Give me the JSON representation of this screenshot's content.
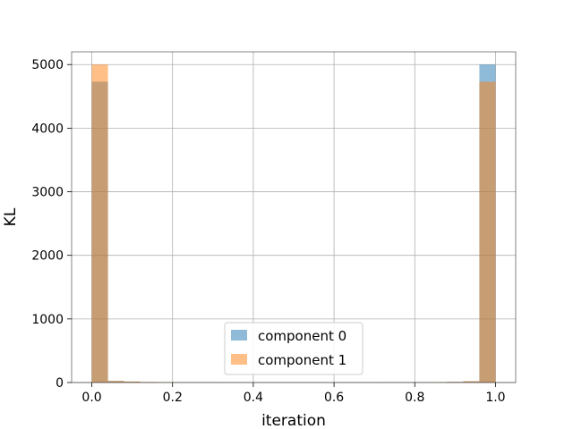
{
  "chart_data": {
    "type": "bar",
    "title": "",
    "xlabel": "iteration",
    "ylabel": "KL",
    "xlim": [
      -0.05,
      1.05
    ],
    "ylim": [
      0,
      5200
    ],
    "xticks": [
      0.0,
      0.2,
      0.4,
      0.6,
      0.8,
      1.0
    ],
    "xtick_labels": [
      "0.0",
      "0.2",
      "0.4",
      "0.6",
      "0.8",
      "1.0"
    ],
    "yticks": [
      0,
      1000,
      2000,
      3000,
      4000,
      5000
    ],
    "ytick_labels": [
      "0",
      "1000",
      "2000",
      "3000",
      "4000",
      "5000"
    ],
    "grid": true,
    "legend_position": "lower-center",
    "bin_edges": [
      0.0,
      0.04,
      0.08,
      0.12,
      0.16,
      0.2,
      0.24,
      0.28,
      0.32,
      0.36,
      0.4,
      0.44,
      0.48,
      0.52,
      0.56,
      0.6,
      0.64,
      0.68,
      0.72,
      0.76,
      0.8,
      0.84,
      0.88,
      0.92,
      0.96,
      1.0
    ],
    "series": [
      {
        "name": "component 0",
        "color": "#1f77b4",
        "opacity": 0.5,
        "values": [
          4730,
          25,
          15,
          8,
          5,
          4,
          3,
          3,
          2,
          2,
          2,
          2,
          2,
          2,
          2,
          2,
          2,
          2,
          3,
          3,
          4,
          6,
          10,
          20,
          5000
        ]
      },
      {
        "name": "component 1",
        "color": "#ff7f0e",
        "opacity": 0.5,
        "values": [
          5000,
          25,
          15,
          8,
          5,
          4,
          3,
          3,
          2,
          2,
          2,
          2,
          2,
          2,
          2,
          2,
          2,
          2,
          3,
          3,
          4,
          6,
          10,
          20,
          4730
        ]
      }
    ]
  }
}
